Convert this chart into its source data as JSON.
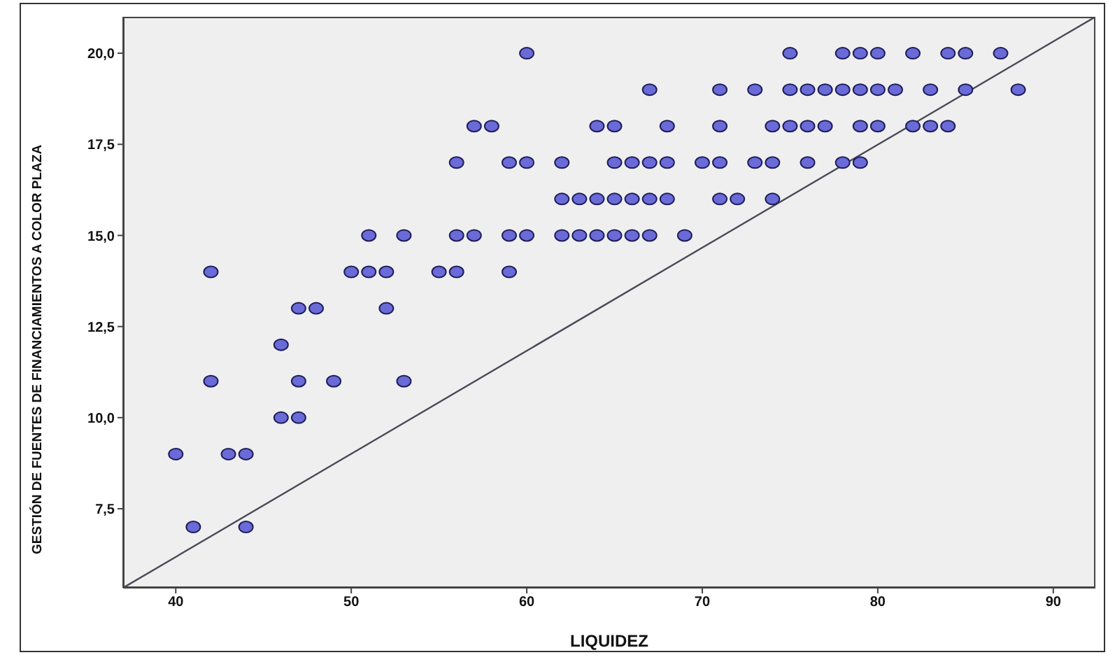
{
  "chart_data": {
    "type": "scatter",
    "xlabel": "LIQUIDEZ",
    "ylabel": "GESTIÓN DE FUENTES DE FINANCIAMIENTOS A COLOR PLAZA",
    "xlim": [
      37,
      92.4
    ],
    "ylim": [
      5.33,
      21
    ],
    "xticks": [
      40,
      50,
      60,
      70,
      80,
      90
    ],
    "yticks": [
      {
        "value": 7.5,
        "label": "7,5"
      },
      {
        "value": 10,
        "label": "10,0"
      },
      {
        "value": 12.5,
        "label": "12,5"
      },
      {
        "value": 15,
        "label": "15,0"
      },
      {
        "value": 17.5,
        "label": "17,5"
      },
      {
        "value": 20,
        "label": "20,0"
      }
    ],
    "legend": false,
    "series": [
      {
        "marker": "circle",
        "color": "#6a6ad8",
        "x": [
          60,
          75,
          78,
          79,
          80,
          82,
          84,
          85,
          87,
          67,
          71,
          73,
          75,
          76,
          77,
          78,
          79,
          80,
          81,
          83,
          85,
          88,
          57,
          58,
          64,
          65,
          68,
          71,
          74,
          75,
          76,
          77,
          79,
          80,
          82,
          83,
          84,
          56,
          59,
          60,
          62,
          65,
          66,
          67,
          68,
          70,
          71,
          73,
          74,
          76,
          78,
          79,
          62,
          63,
          64,
          65,
          66,
          67,
          68,
          71,
          72,
          74,
          51,
          53,
          56,
          57,
          59,
          60,
          62,
          63,
          64,
          65,
          66,
          67,
          69,
          42,
          50,
          51,
          52,
          55,
          56,
          59,
          47,
          48,
          52,
          46,
          42,
          47,
          49,
          53,
          46,
          47,
          40,
          43,
          44,
          41,
          44
        ],
        "values": [
          20,
          20,
          20,
          20,
          20,
          20,
          20,
          20,
          20,
          19,
          19,
          19,
          19,
          19,
          19,
          19,
          19,
          19,
          19,
          19,
          19,
          19,
          18,
          18,
          18,
          18,
          18,
          18,
          18,
          18,
          18,
          18,
          18,
          18,
          18,
          18,
          18,
          17,
          17,
          17,
          17,
          17,
          17,
          17,
          17,
          17,
          17,
          17,
          17,
          17,
          17,
          17,
          16,
          16,
          16,
          16,
          16,
          16,
          16,
          16,
          16,
          16,
          15,
          15,
          15,
          15,
          15,
          15,
          15,
          15,
          15,
          15,
          15,
          15,
          15,
          14,
          14,
          14,
          14,
          14,
          14,
          14,
          13,
          13,
          13,
          12,
          11,
          11,
          11,
          11,
          10,
          10,
          9,
          9,
          9,
          7,
          7
        ]
      },
      {
        "type": "line",
        "marker": "none",
        "color": "#4a4a58",
        "x": [
          37,
          92.4
        ],
        "values": [
          5.33,
          21
        ]
      }
    ]
  }
}
